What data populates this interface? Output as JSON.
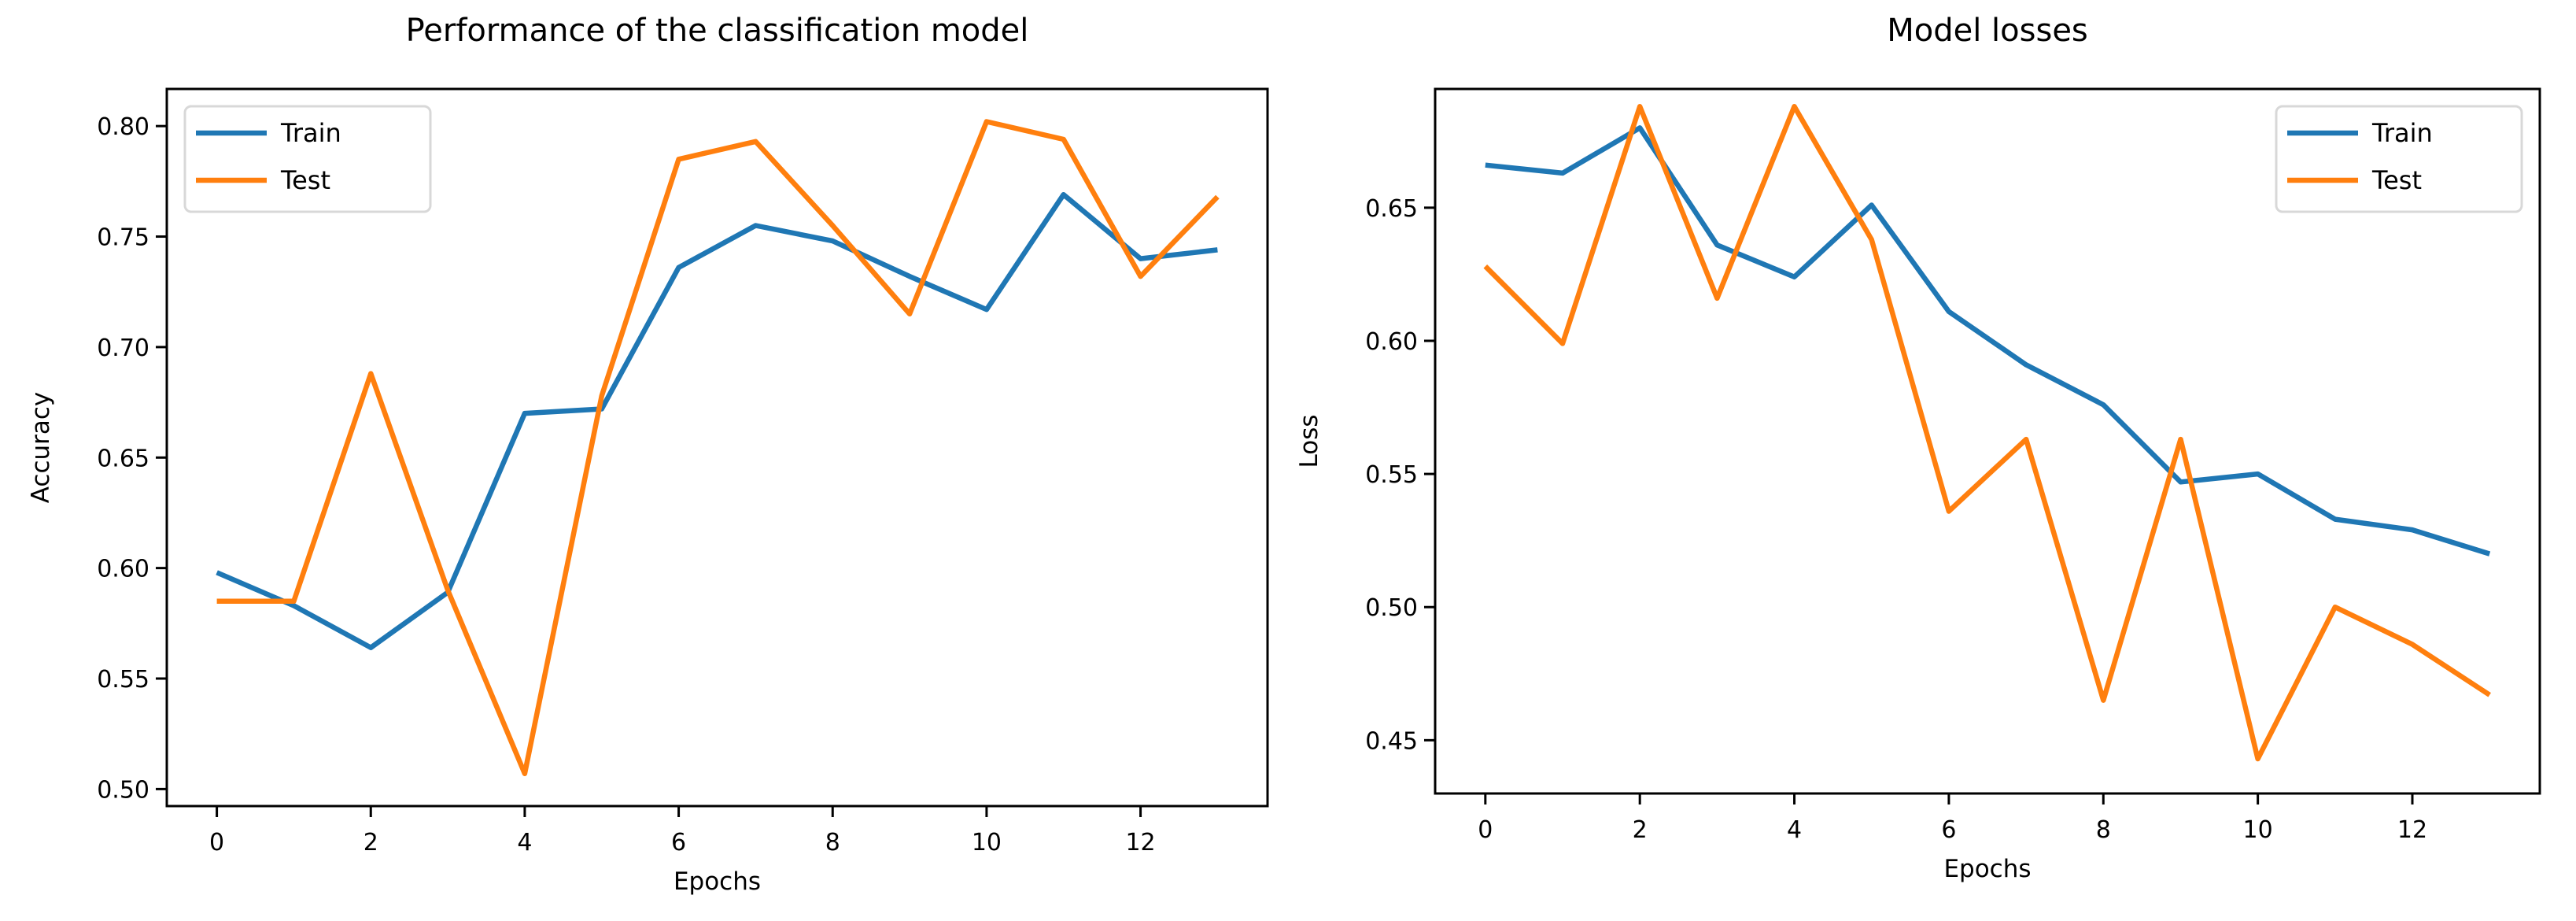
{
  "figure": {
    "background": "#ffffff",
    "spine_color": "#000000",
    "legend_border_color": "#d8d8d8",
    "train_color": "#1f77b4",
    "test_color": "#ff7f0e"
  },
  "chart_data": [
    {
      "type": "line",
      "title": "Performance of the classification model",
      "xlabel": "Epochs",
      "ylabel": "Accuracy",
      "x": [
        0,
        1,
        2,
        3,
        4,
        5,
        6,
        7,
        8,
        9,
        10,
        11,
        12,
        13
      ],
      "series": [
        {
          "name": "Train",
          "color": "#1f77b4",
          "values": [
            0.598,
            0.583,
            0.564,
            0.589,
            0.67,
            0.672,
            0.736,
            0.755,
            0.748,
            0.732,
            0.717,
            0.769,
            0.74,
            0.744
          ]
        },
        {
          "name": "Test",
          "color": "#ff7f0e",
          "values": [
            0.585,
            0.585,
            0.688,
            0.59,
            0.507,
            0.678,
            0.785,
            0.793,
            0.755,
            0.715,
            0.802,
            0.794,
            0.732,
            0.768
          ]
        }
      ],
      "xlim": [
        -0.65,
        13.65
      ],
      "ylim": [
        0.4923,
        0.8168
      ],
      "yticks": [
        0.5,
        0.55,
        0.6,
        0.65,
        0.7,
        0.75,
        0.8
      ],
      "ytick_labels": [
        "0.50",
        "0.55",
        "0.60",
        "0.65",
        "0.70",
        "0.75",
        "0.80"
      ],
      "xticks": [
        0,
        2,
        4,
        6,
        8,
        10,
        12
      ],
      "xtick_labels": [
        "0",
        "2",
        "4",
        "6",
        "8",
        "10",
        "12"
      ],
      "legend": {
        "position": "upper-left",
        "entries": [
          "Train",
          "Test"
        ]
      },
      "grid": false
    },
    {
      "type": "line",
      "title": "Model losses",
      "xlabel": "Epochs",
      "ylabel": "Loss",
      "x": [
        0,
        1,
        2,
        3,
        4,
        5,
        6,
        7,
        8,
        9,
        10,
        11,
        12,
        13
      ],
      "series": [
        {
          "name": "Train",
          "color": "#1f77b4",
          "values": [
            0.666,
            0.663,
            0.68,
            0.636,
            0.624,
            0.651,
            0.611,
            0.591,
            0.576,
            0.547,
            0.55,
            0.533,
            0.529,
            0.52
          ]
        },
        {
          "name": "Test",
          "color": "#ff7f0e",
          "values": [
            0.628,
            0.599,
            0.688,
            0.616,
            0.688,
            0.638,
            0.536,
            0.563,
            0.465,
            0.563,
            0.443,
            0.5,
            0.486,
            0.467
          ]
        }
      ],
      "xlim": [
        -0.65,
        13.65
      ],
      "ylim": [
        0.43,
        0.6946
      ],
      "yticks": [
        0.45,
        0.5,
        0.55,
        0.6,
        0.65
      ],
      "ytick_labels": [
        "0.45",
        "0.50",
        "0.55",
        "0.60",
        "0.65"
      ],
      "xticks": [
        0,
        2,
        4,
        6,
        8,
        10,
        12
      ],
      "xtick_labels": [
        "0",
        "2",
        "4",
        "6",
        "8",
        "10",
        "12"
      ],
      "legend": {
        "position": "upper-right",
        "entries": [
          "Train",
          "Test"
        ]
      },
      "grid": false
    }
  ]
}
